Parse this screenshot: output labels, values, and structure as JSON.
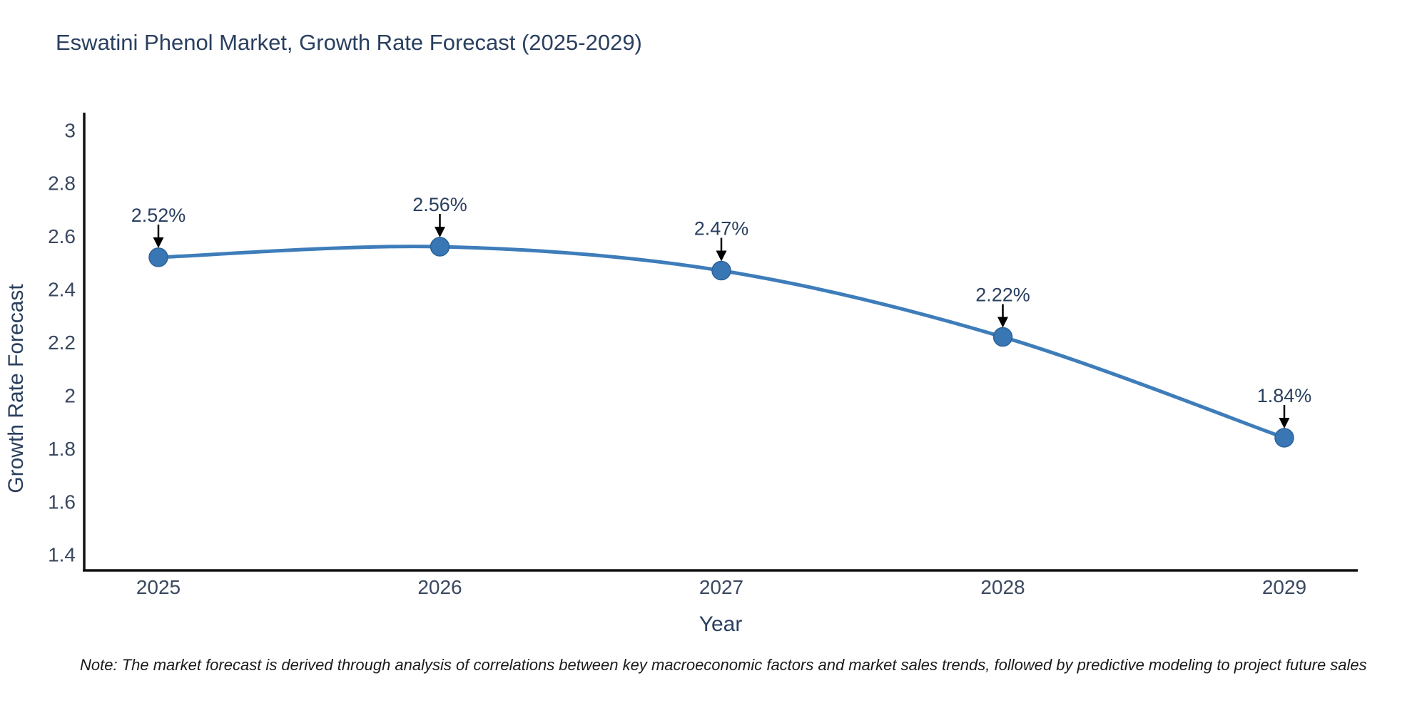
{
  "title": "Eswatini Phenol Market, Growth Rate Forecast (2025-2029)",
  "footnote": "Note: The market forecast is derived through analysis of correlations between key macroeconomic factors and market sales trends, followed by predictive modeling to project future sales",
  "chart_data": {
    "type": "line",
    "title": "Eswatini Phenol Market, Growth Rate Forecast (2025-2029)",
    "xlabel": "Year",
    "ylabel": "Growth Rate Forecast",
    "categories": [
      "2025",
      "2026",
      "2027",
      "2028",
      "2029"
    ],
    "series": [
      {
        "name": "Growth Rate Forecast",
        "values": [
          2.52,
          2.56,
          2.47,
          2.22,
          1.84
        ],
        "point_labels": [
          "2.52%",
          "2.56%",
          "2.47%",
          "2.22%",
          "1.84%"
        ]
      }
    ],
    "yticks": [
      "3",
      "2.8",
      "2.6",
      "2.4",
      "2.2",
      "2",
      "1.8",
      "1.6",
      "1.4"
    ],
    "ytick_values": [
      3,
      2.8,
      2.6,
      2.4,
      2.2,
      2,
      1.8,
      1.6,
      1.4
    ],
    "ylim": [
      1.34,
      3.06
    ],
    "grid": false,
    "legend_position": "none",
    "line_shape": "spline",
    "annotations": "value labels with down arrows above each point",
    "colors": {
      "line": "#3E7DBA",
      "marker_fill": "#3876B4",
      "marker_edge": "#2D6298",
      "arrow": "#000000",
      "title_text": "#2a3f5f",
      "tick_text": "#3a4860"
    }
  }
}
